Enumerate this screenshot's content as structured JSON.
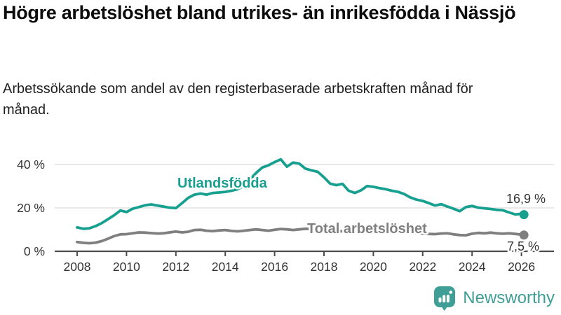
{
  "header": {
    "title": "Högre arbetslöshet bland utrikes- än inrikesfödda i Nässjö",
    "subtitle": "Arbetssökande som andel av den registerbaserade arbetskraften månad för månad."
  },
  "chart_data": {
    "type": "line",
    "title": "Högre arbetslöshet bland utrikes- än inrikesfödda i Nässjö",
    "xlabel": "",
    "ylabel": "",
    "xlim": [
      2007.1,
      2027.3
    ],
    "ylim": [
      0,
      45
    ],
    "grid": "horizontal",
    "legend_position": "inline-labels",
    "y_ticks": [
      0,
      20,
      40
    ],
    "y_tick_labels": [
      "0 %",
      "20 %",
      "40 %"
    ],
    "x_ticks": [
      2008,
      2010,
      2012,
      2014,
      2016,
      2018,
      2020,
      2022,
      2024,
      2026
    ],
    "x_tick_labels": [
      "2008",
      "2010",
      "2012",
      "2014",
      "2016",
      "2018",
      "2020",
      "2022",
      "2024",
      "2026"
    ],
    "x": [
      2008,
      2008.25,
      2008.5,
      2008.75,
      2009,
      2009.25,
      2009.5,
      2009.75,
      2010,
      2010.25,
      2010.5,
      2010.75,
      2011,
      2011.25,
      2011.5,
      2011.75,
      2012,
      2012.25,
      2012.5,
      2012.75,
      2013,
      2013.25,
      2013.5,
      2013.75,
      2014,
      2014.25,
      2014.5,
      2014.75,
      2015,
      2015.25,
      2015.5,
      2015.75,
      2016,
      2016.25,
      2016.5,
      2016.75,
      2017,
      2017.25,
      2017.5,
      2017.75,
      2018,
      2018.25,
      2018.5,
      2018.75,
      2019,
      2019.25,
      2019.5,
      2019.75,
      2020,
      2020.25,
      2020.5,
      2020.75,
      2021,
      2021.25,
      2021.5,
      2021.75,
      2022,
      2022.25,
      2022.5,
      2022.75,
      2023,
      2023.25,
      2023.5,
      2023.75,
      2024,
      2024.25,
      2024.5,
      2024.75,
      2025,
      2025.25,
      2025.5,
      2025.75,
      2026,
      2026.1
    ],
    "series": [
      {
        "name": "Utlandsfödda",
        "color": "#17a08f",
        "end_label": "16,9 %",
        "end_value": 16.9,
        "values": [
          11,
          10.4,
          10.6,
          11.6,
          13,
          14.8,
          16.6,
          18.8,
          18.1,
          19.6,
          20.4,
          21.2,
          21.6,
          21.1,
          20.6,
          20.1,
          19.9,
          22.2,
          24.6,
          26.1,
          26.6,
          26.1,
          26.9,
          27.1,
          27.4,
          27.9,
          28.6,
          30.1,
          33.1,
          36.1,
          38.6,
          39.6,
          41.1,
          42.4,
          39,
          40.9,
          40.4,
          38.1,
          37.3,
          36.6,
          34.1,
          31.2,
          30.5,
          31.1,
          27.9,
          26.9,
          28.1,
          30.1,
          29.7,
          29.1,
          28.6,
          27.9,
          27.4,
          26.4,
          24.8,
          23.8,
          23.2,
          22.2,
          21.1,
          21.7,
          20.6,
          19.6,
          18.5,
          20.4,
          20.9,
          20.1,
          19.8,
          19.5,
          19.1,
          18.9,
          17.9,
          17,
          17.3,
          16.9
        ]
      },
      {
        "name": "Total arbetslöshet",
        "color": "#7f7f7f",
        "end_label": "7,5 %",
        "end_value": 7.5,
        "values": [
          4.3,
          3.9,
          3.7,
          4,
          4.7,
          5.8,
          7,
          7.8,
          7.9,
          8.3,
          8.7,
          8.6,
          8.4,
          8.2,
          8.3,
          8.7,
          9.1,
          8.7,
          9,
          9.8,
          9.9,
          9.5,
          9.3,
          9.6,
          9.8,
          9.4,
          9.2,
          9.5,
          9.8,
          10.1,
          9.8,
          9.5,
          9.9,
          10.3,
          10.1,
          9.8,
          10.1,
          10.4,
          10.2,
          10,
          9.8,
          9.6,
          9.4,
          9.2,
          9,
          8.9,
          9.1,
          9.3,
          9.2,
          9.6,
          9.9,
          9.6,
          9.2,
          8.9,
          8.6,
          8.4,
          8.2,
          8,
          7.9,
          8.2,
          8.3,
          7.8,
          7.5,
          7.4,
          8.1,
          8.5,
          8.3,
          8.6,
          8.3,
          8.1,
          8.3,
          8,
          7.7,
          7.5
        ]
      }
    ],
    "colors": {
      "grid": "#dcdcdc",
      "axis": "#4d4d4d",
      "tick_text": "#333333"
    }
  },
  "footer": {
    "brand": "Newsworthy",
    "brand_color": "#3f9e96",
    "logo_icon": "speech-bubble-bar-chart-icon"
  }
}
